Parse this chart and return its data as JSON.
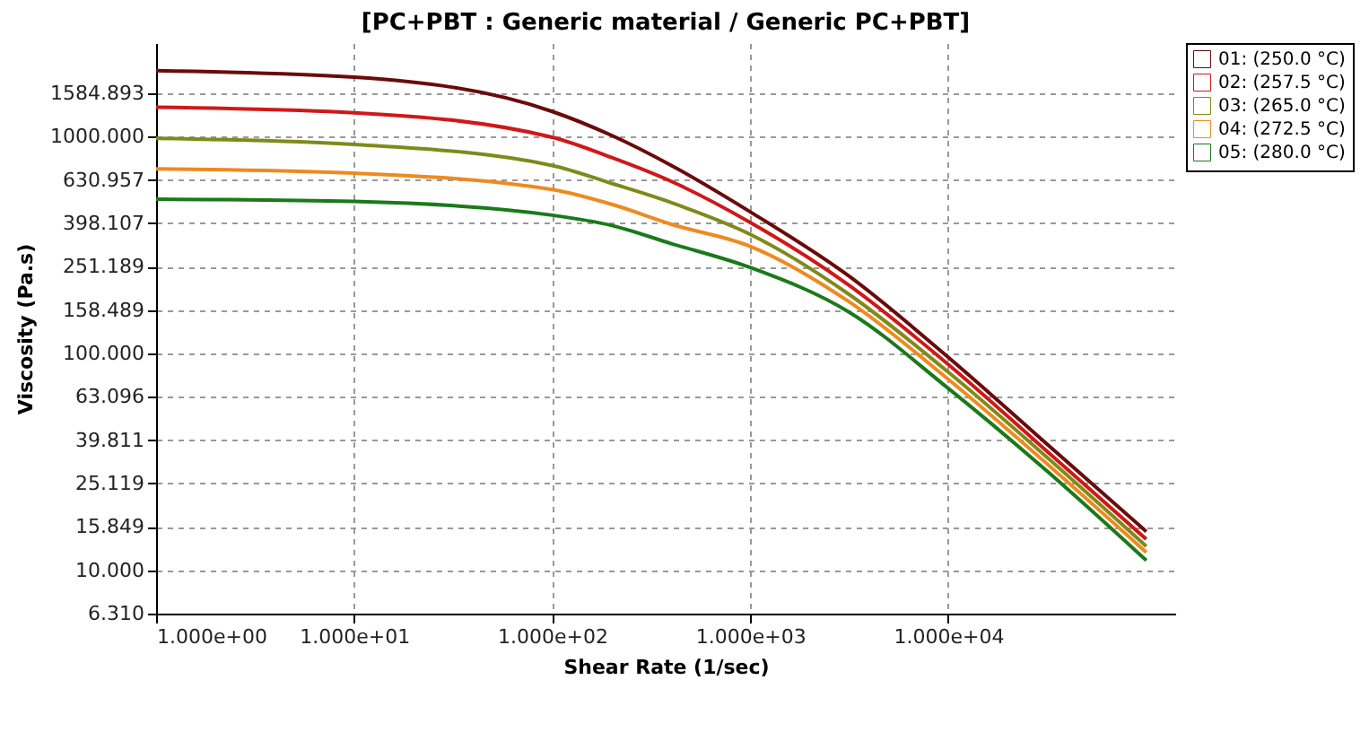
{
  "chart_data": {
    "type": "line",
    "title": "[PC+PBT : Generic material / Generic PC+PBT]",
    "xlabel": "Shear Rate (1/sec)",
    "ylabel": "Viscosity (Pa.s)",
    "x": [
      1,
      10,
      100,
      200,
      400,
      1000,
      3160,
      10000,
      31600,
      100000
    ],
    "series": [
      {
        "name": "01: (250.0 °C)",
        "color": "#6b0a0a",
        "values": [
          2014,
          1880,
          1306,
          1012,
          736,
          450,
          227,
          96,
          38.1,
          15.1
        ]
      },
      {
        "name": "02: (257.5 °C)",
        "color": "#d01818",
        "values": [
          1365,
          1288,
          993,
          800,
          621,
          402,
          206,
          89,
          35.3,
          13.9
        ]
      },
      {
        "name": "03: (265.0 °C)",
        "color": "#7f8a1a",
        "values": [
          982,
          920,
          736,
          608,
          496,
          354,
          187,
          82,
          33.1,
          12.9
        ]
      },
      {
        "name": "04: (272.5 °C)",
        "color": "#ee8a20",
        "values": [
          710,
          678,
          570,
          487,
          394,
          312,
          173,
          76,
          30.9,
          12.1
        ]
      },
      {
        "name": "05: (280.0 °C)",
        "color": "#1a7a1a",
        "values": [
          515,
          502,
          434,
          389,
          321,
          249,
          155,
          69,
          28.6,
          11.1
        ]
      }
    ],
    "log": "xy",
    "xlim": [
      1,
      140000
    ],
    "ylim": [
      6.31,
      2700
    ],
    "xticks": [
      {
        "value": 1,
        "label": "1.000e+00"
      },
      {
        "value": 10,
        "label": "1.000e+01"
      },
      {
        "value": 100,
        "label": "1.000e+02"
      },
      {
        "value": 1000,
        "label": "1.000e+03"
      },
      {
        "value": 10000,
        "label": "1.000e+04"
      }
    ],
    "yticks": [
      {
        "value": 6.31,
        "label": "6.310"
      },
      {
        "value": 10,
        "label": "10.000"
      },
      {
        "value": 15.849,
        "label": "15.849"
      },
      {
        "value": 25.119,
        "label": "25.119"
      },
      {
        "value": 39.811,
        "label": "39.811"
      },
      {
        "value": 63.096,
        "label": "63.096"
      },
      {
        "value": 100,
        "label": "100.000"
      },
      {
        "value": 158.489,
        "label": "158.489"
      },
      {
        "value": 251.189,
        "label": "251.189"
      },
      {
        "value": 398.107,
        "label": "398.107"
      },
      {
        "value": 630.957,
        "label": "630.957"
      },
      {
        "value": 1000,
        "label": "1000.000"
      },
      {
        "value": 1584.893,
        "label": "1584.893"
      }
    ],
    "grid": true,
    "legend": "right",
    "marker": "none",
    "line_style": "solid"
  }
}
